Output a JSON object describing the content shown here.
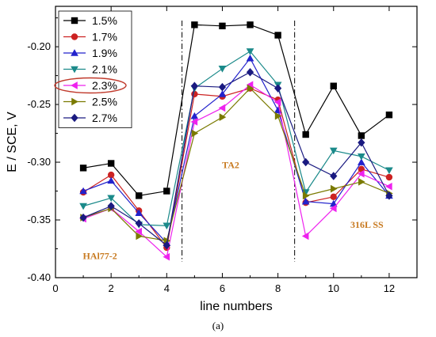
{
  "chart_data": {
    "type": "line",
    "title": "",
    "xlabel": "line numbers",
    "ylabel": "E / SCE, V",
    "xlim": [
      0,
      13
    ],
    "ylim": [
      -0.4,
      -0.165
    ],
    "xticks": [
      0,
      2,
      4,
      6,
      8,
      10,
      12
    ],
    "yticks": [
      -0.4,
      -0.35,
      -0.3,
      -0.25,
      -0.2
    ],
    "x": [
      1,
      2,
      3,
      4,
      5,
      6,
      7,
      8,
      9,
      10,
      11,
      12
    ],
    "legend_position": "top-left",
    "series": [
      {
        "name": "1.5%",
        "color": "#000000",
        "marker": "square",
        "values": [
          -0.305,
          -0.301,
          -0.329,
          -0.325,
          -0.181,
          -0.182,
          -0.181,
          -0.19,
          -0.276,
          -0.234,
          -0.277,
          -0.259
        ]
      },
      {
        "name": "1.7%",
        "color": "#cc2222",
        "marker": "circle",
        "values": [
          -0.326,
          -0.311,
          -0.342,
          -0.374,
          -0.241,
          -0.243,
          -0.236,
          -0.246,
          -0.335,
          -0.33,
          -0.306,
          -0.313
        ]
      },
      {
        "name": "1.9%",
        "color": "#2222cc",
        "marker": "triangle-up",
        "values": [
          -0.325,
          -0.316,
          -0.344,
          -0.37,
          -0.26,
          -0.241,
          -0.21,
          -0.255,
          -0.334,
          -0.336,
          -0.3,
          -0.329
        ]
      },
      {
        "name": "2.1%",
        "color": "#1b8a8a",
        "marker": "triangle-down",
        "values": [
          -0.338,
          -0.331,
          -0.354,
          -0.355,
          -0.236,
          -0.219,
          -0.204,
          -0.233,
          -0.326,
          -0.29,
          -0.295,
          -0.307
        ]
      },
      {
        "name": "2.3%",
        "color": "#ee22ee",
        "marker": "triangle-left",
        "values": [
          -0.349,
          -0.34,
          -0.36,
          -0.382,
          -0.265,
          -0.253,
          -0.233,
          -0.248,
          -0.364,
          -0.34,
          -0.31,
          -0.321
        ]
      },
      {
        "name": "2.5%",
        "color": "#7a7a00",
        "marker": "triangle-right",
        "values": [
          -0.348,
          -0.34,
          -0.364,
          -0.368,
          -0.275,
          -0.261,
          -0.236,
          -0.26,
          -0.329,
          -0.323,
          -0.317,
          -0.327
        ]
      },
      {
        "name": "2.7%",
        "color": "#1a1a80",
        "marker": "diamond",
        "values": [
          -0.348,
          -0.338,
          -0.353,
          -0.372,
          -0.234,
          -0.235,
          -0.222,
          -0.236,
          -0.3,
          -0.312,
          -0.283,
          -0.329
        ]
      }
    ],
    "vlines": [
      4.55,
      8.6
    ],
    "annotations": [
      {
        "text": "HAl77-2",
        "x": 1.6,
        "y": -0.384,
        "color": "#c87a20"
      },
      {
        "text": "TA2",
        "x": 6.3,
        "y": -0.305,
        "color": "#c87a20"
      },
      {
        "text": "316L SS",
        "x": 11.2,
        "y": -0.357,
        "color": "#c87a20"
      }
    ],
    "highlight_series": "2.3%",
    "highlight_color": "#c0392b"
  },
  "caption": "(a)"
}
